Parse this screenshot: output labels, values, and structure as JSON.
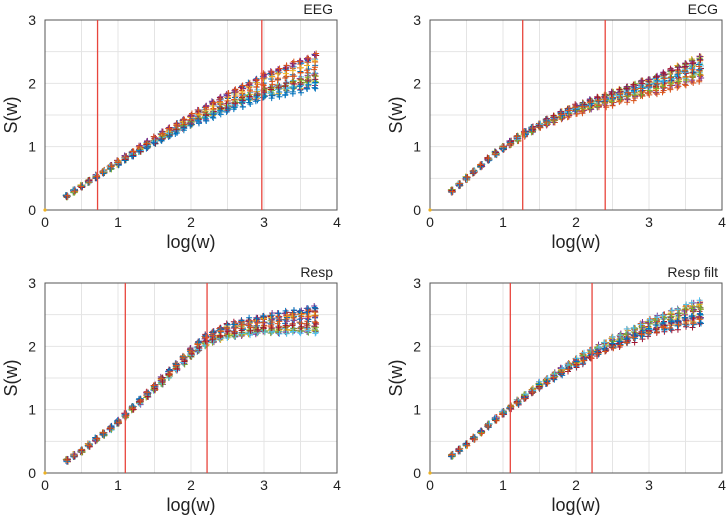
{
  "chart_data": [
    {
      "type": "scatter",
      "title": "EEG",
      "xlabel": "log(w)",
      "ylabel": "S(w)",
      "xlim": [
        0,
        4
      ],
      "ylim": [
        0,
        3
      ],
      "xticks": [
        "0",
        "1",
        "2",
        "3",
        "4"
      ],
      "yticks": [
        "0",
        "1",
        "2",
        "3"
      ],
      "vlines": [
        0.72,
        2.97
      ],
      "marker": "+",
      "n_series": 30,
      "x_range": [
        0.3,
        3.7
      ],
      "profile": {
        "x": [
          0.3,
          0.5,
          1.0,
          1.5,
          2.0,
          2.5,
          3.0,
          3.5,
          3.7
        ],
        "y": [
          0.22,
          0.38,
          0.75,
          1.1,
          1.42,
          1.7,
          1.95,
          2.12,
          2.2
        ]
      },
      "end_spread": 0.55,
      "colors": [
        "#0072bd",
        "#d95319",
        "#edb120",
        "#7e2f8e",
        "#77ac30",
        "#4dbeee",
        "#a2142f"
      ]
    },
    {
      "type": "scatter",
      "title": "ECG",
      "xlabel": "log(w)",
      "ylabel": "S(w)",
      "xlim": [
        0,
        4
      ],
      "ylim": [
        0,
        3
      ],
      "xticks": [
        "0",
        "1",
        "2",
        "3",
        "4"
      ],
      "yticks": [
        "0",
        "1",
        "2",
        "3"
      ],
      "vlines": [
        1.27,
        2.4
      ],
      "marker": "+",
      "n_series": 30,
      "x_range": [
        0.3,
        3.7
      ],
      "profile": {
        "x": [
          0.3,
          0.5,
          0.8,
          1.0,
          1.3,
          1.6,
          2.0,
          2.4,
          2.8,
          3.2,
          3.7
        ],
        "y": [
          0.3,
          0.5,
          0.8,
          0.98,
          1.2,
          1.38,
          1.58,
          1.72,
          1.85,
          2.0,
          2.2
        ]
      },
      "end_spread": 0.45,
      "colors": [
        "#0072bd",
        "#d95319",
        "#edb120",
        "#7e2f8e",
        "#77ac30",
        "#4dbeee",
        "#a2142f"
      ]
    },
    {
      "type": "scatter",
      "title": "Resp",
      "xlabel": "log(w)",
      "ylabel": "S(w)",
      "xlim": [
        0,
        4
      ],
      "ylim": [
        0,
        3
      ],
      "xticks": [
        "0",
        "1",
        "2",
        "3",
        "4"
      ],
      "yticks": [
        "0",
        "1",
        "2",
        "3"
      ],
      "vlines": [
        1.1,
        2.22
      ],
      "marker": "+",
      "n_series": 30,
      "x_range": [
        0.3,
        3.7
      ],
      "profile": {
        "x": [
          0.3,
          0.5,
          1.0,
          1.5,
          2.0,
          2.2,
          2.5,
          3.0,
          3.5,
          3.7
        ],
        "y": [
          0.2,
          0.35,
          0.8,
          1.35,
          1.9,
          2.1,
          2.25,
          2.35,
          2.4,
          2.42
        ]
      },
      "end_spread": 0.4,
      "colors": [
        "#0072bd",
        "#d95319",
        "#edb120",
        "#7e2f8e",
        "#77ac30",
        "#4dbeee",
        "#a2142f"
      ]
    },
    {
      "type": "scatter",
      "title": "Resp filt",
      "xlabel": "log(w)",
      "ylabel": "S(w)",
      "xlim": [
        0,
        4
      ],
      "ylim": [
        0,
        3
      ],
      "xticks": [
        "0",
        "1",
        "2",
        "3",
        "4"
      ],
      "yticks": [
        "0",
        "1",
        "2",
        "3"
      ],
      "vlines": [
        1.1,
        2.22
      ],
      "marker": "+",
      "n_series": 30,
      "x_range": [
        0.3,
        3.7
      ],
      "profile": {
        "x": [
          0.3,
          0.5,
          1.0,
          1.5,
          2.0,
          2.5,
          3.0,
          3.5,
          3.7
        ],
        "y": [
          0.28,
          0.45,
          0.95,
          1.38,
          1.75,
          2.05,
          2.3,
          2.48,
          2.52
        ]
      },
      "end_spread": 0.4,
      "colors": [
        "#0072bd",
        "#d95319",
        "#edb120",
        "#7e2f8e",
        "#77ac30",
        "#4dbeee",
        "#a2142f"
      ]
    }
  ]
}
